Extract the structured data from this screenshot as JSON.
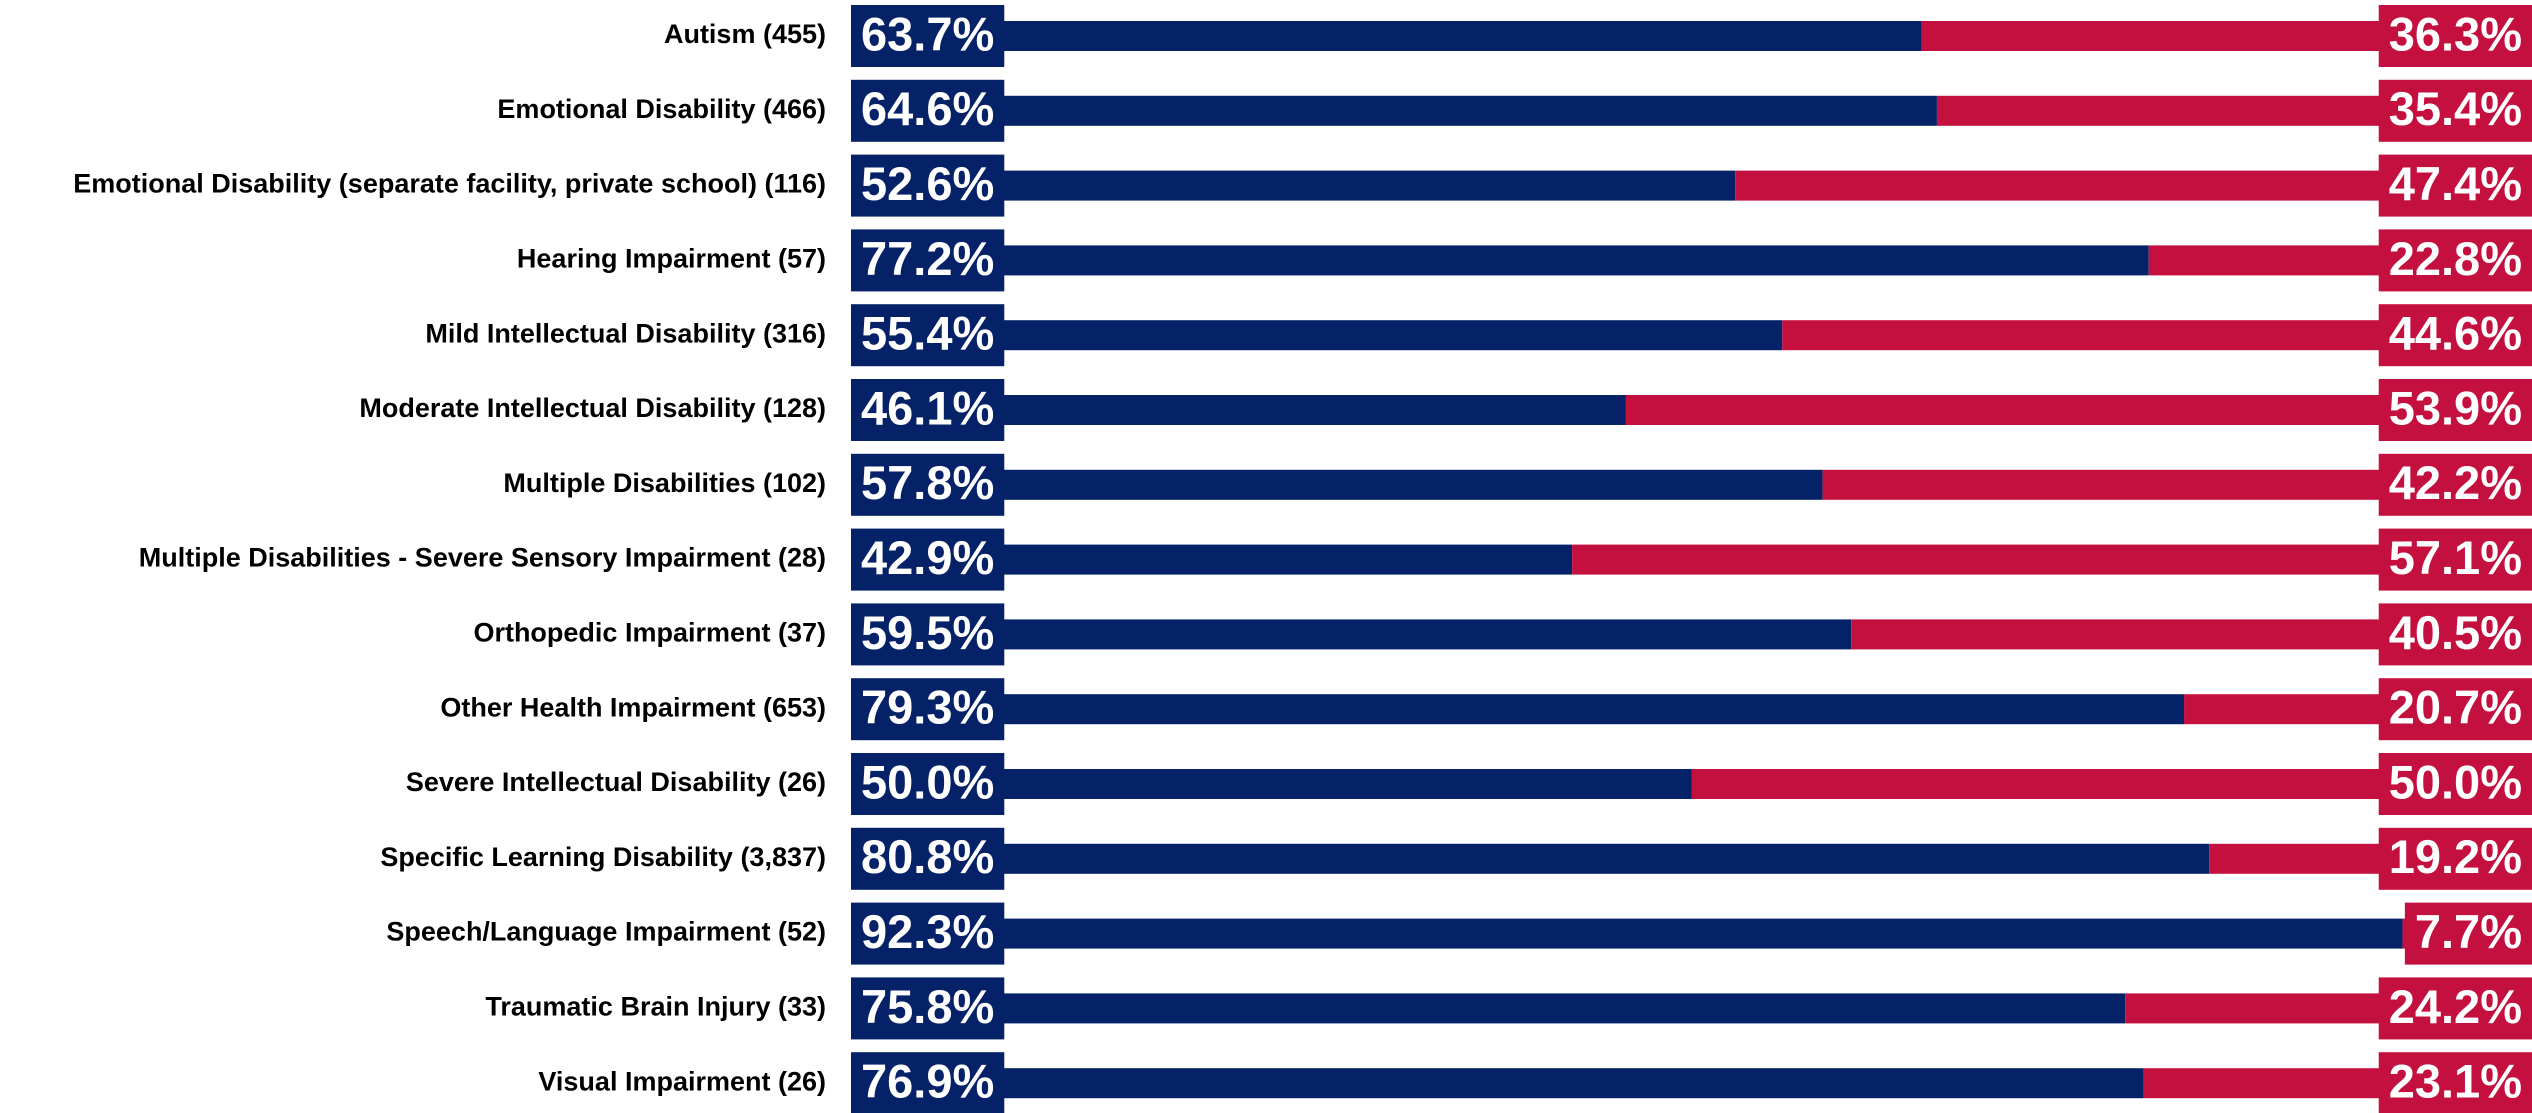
{
  "chart_data": {
    "type": "stacked-bar-horizontal",
    "categories": [
      "Autism (455)",
      "Emotional Disability (466)",
      "Emotional Disability (separate facility, private school) (116)",
      "Hearing Impairment (57)",
      "Mild Intellectual Disability (316)",
      "Moderate Intellectual Disability (128)",
      "Multiple Disabilities (102)",
      "Multiple Disabilities - Severe Sensory Impairment (28)",
      "Orthopedic Impairment (37)",
      "Other Health Impairment (653)",
      "Severe Intellectual Disability (26)",
      "Specific Learning Disability (3,837)",
      "Speech/Language Impairment (52)",
      "Traumatic Brain Injury (33)",
      "Visual Impairment (26)"
    ],
    "xlim": [
      0,
      100
    ],
    "series": [
      {
        "color": "#052269",
        "values": [
          63.7,
          64.6,
          52.6,
          77.2,
          55.4,
          46.1,
          57.8,
          42.9,
          59.5,
          79.3,
          50.0,
          80.8,
          92.3,
          75.8,
          76.9
        ],
        "value_labels": [
          "63.7%",
          "64.6%",
          "52.6%",
          "77.2%",
          "55.4%",
          "46.1%",
          "57.8%",
          "42.9%",
          "59.5%",
          "79.3%",
          "50.0%",
          "80.8%",
          "92.3%",
          "75.8%",
          "76.9%"
        ]
      },
      {
        "color": "#c4103f",
        "values": [
          36.3,
          35.4,
          47.4,
          22.8,
          44.6,
          53.9,
          42.2,
          57.1,
          40.5,
          20.7,
          50.0,
          19.2,
          7.7,
          24.2,
          23.1
        ],
        "value_labels": [
          "36.3%",
          "35.4%",
          "47.4%",
          "22.8%",
          "44.6%",
          "53.9%",
          "42.2%",
          "57.1%",
          "40.5%",
          "20.7%",
          "50.0%",
          "19.2%",
          "7.7%",
          "24.2%",
          "23.1%"
        ]
      }
    ]
  }
}
